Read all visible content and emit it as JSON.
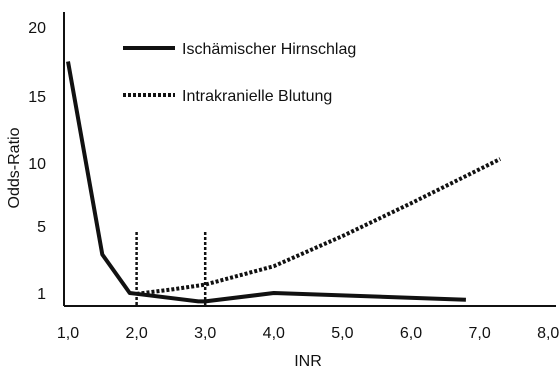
{
  "chart_data": {
    "type": "line",
    "xlabel": "INR",
    "ylabel": "Odds-Ratio",
    "xlim": [
      1.0,
      8.0
    ],
    "x_ticks": [
      "1,0",
      "2,0",
      "3,0",
      "4,0",
      "5,0",
      "6,0",
      "7,0",
      "8,0"
    ],
    "y_ticks": [
      {
        "value": 1,
        "label": "1"
      },
      {
        "value": 5,
        "label": "5"
      },
      {
        "value": 10,
        "label": "10"
      },
      {
        "value": 15,
        "label": "15"
      },
      {
        "value": 20,
        "label": "20"
      }
    ],
    "legend_position": "top",
    "grid": false,
    "series": [
      {
        "name": "Ischämischer Hirnschlag",
        "style": "solid",
        "x": [
          1.0,
          1.5,
          1.9,
          2.0,
          2.9,
          3.0,
          4.0,
          6.8
        ],
        "y": [
          17.5,
          3.3,
          1.0,
          0.95,
          0.5,
          0.5,
          1.0,
          0.6
        ]
      },
      {
        "name": "Intrakranielle Blutung",
        "style": "dotted",
        "x": [
          2.0,
          2.5,
          3.0,
          4.0,
          5.0,
          6.0,
          7.3
        ],
        "y": [
          0.95,
          1.2,
          1.5,
          2.6,
          4.4,
          6.8,
          10.3
        ]
      }
    ],
    "vertical_markers": [
      2.0,
      3.0
    ]
  }
}
